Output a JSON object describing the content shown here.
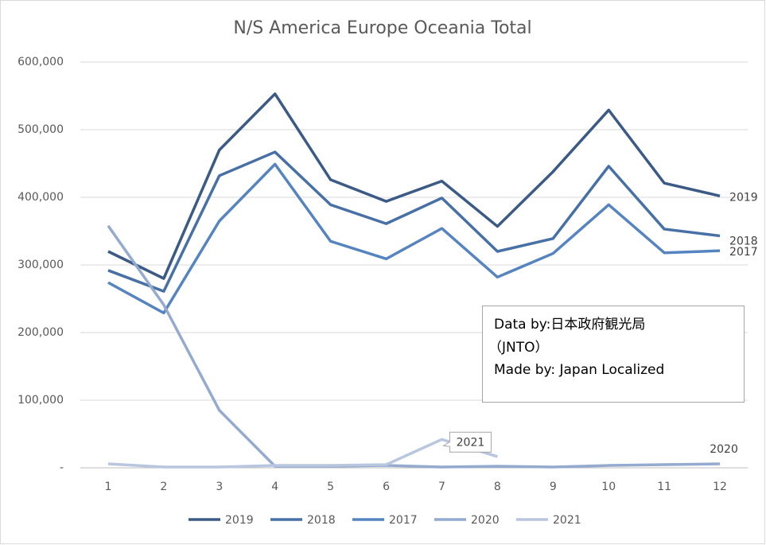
{
  "chart_data": {
    "type": "line",
    "title": "N/S America Europe Oceania Total",
    "categories": [
      "1",
      "2",
      "3",
      "4",
      "5",
      "6",
      "7",
      "8",
      "9",
      "10",
      "11",
      "12"
    ],
    "ylim": [
      0,
      600000
    ],
    "yticks": [
      {
        "value": 0,
        "label": "-"
      },
      {
        "value": 100000,
        "label": "100,000"
      },
      {
        "value": 200000,
        "label": "200,000"
      },
      {
        "value": 300000,
        "label": "300,000"
      },
      {
        "value": 400000,
        "label": "400,000"
      },
      {
        "value": 500000,
        "label": "500,000"
      },
      {
        "value": 600000,
        "label": "600,000"
      }
    ],
    "grid": true,
    "legend": "bottom",
    "series": [
      {
        "name": "2019",
        "color": "#3b5a85",
        "values": [
          320000,
          280000,
          470000,
          553000,
          426000,
          394000,
          424000,
          357000,
          438000,
          529000,
          421000,
          402000
        ]
      },
      {
        "name": "2018",
        "color": "#4670a6",
        "values": [
          292000,
          261000,
          432000,
          467000,
          389000,
          361000,
          399000,
          320000,
          339000,
          446000,
          353000,
          343000
        ]
      },
      {
        "name": "2017",
        "color": "#5584c0",
        "values": [
          274000,
          229000,
          365000,
          449000,
          335000,
          309000,
          354000,
          282000,
          317000,
          389000,
          318000,
          321000
        ]
      },
      {
        "name": "2020",
        "color": "#94aacf",
        "values": [
          358000,
          241000,
          85000,
          2400,
          2400,
          3500,
          1200,
          2400,
          1200,
          3500,
          4700,
          5900
        ]
      },
      {
        "name": "2021",
        "color": "#b9c6df",
        "values": [
          5900,
          1200,
          1200,
          3500,
          3500,
          4700,
          42000,
          16500,
          null,
          null,
          null,
          null
        ]
      }
    ],
    "annotations": [
      "Data by:日本政府観光局",
      "（JNTO）",
      "Made by: Japan Localized"
    ]
  }
}
